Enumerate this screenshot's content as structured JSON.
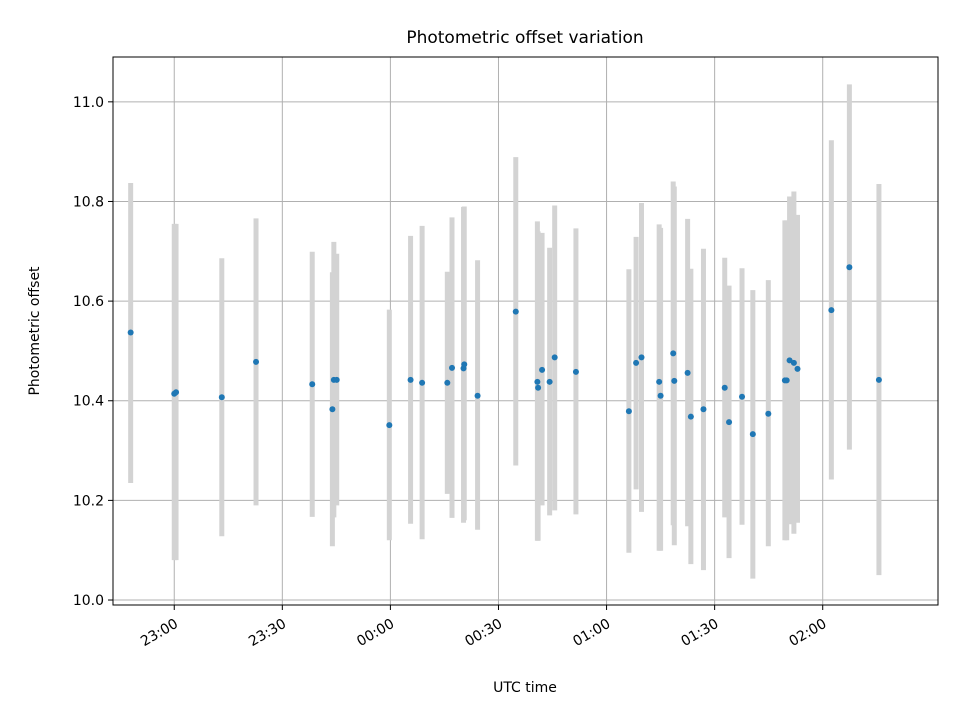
{
  "chart_data": {
    "type": "scatter",
    "title": "Photometric offset variation",
    "xlabel": "UTC time",
    "ylabel": "Photometric offset",
    "x_unit": "UTC time of day (minutes after midnight; negative = previous day)",
    "xlim": [
      -77,
      152
    ],
    "ylim": [
      9.99,
      11.09
    ],
    "grid": true,
    "x_ticks": [
      {
        "value": -60,
        "label": "23:00"
      },
      {
        "value": -30,
        "label": "23:30"
      },
      {
        "value": 0,
        "label": "00:00"
      },
      {
        "value": 30,
        "label": "00:30"
      },
      {
        "value": 60,
        "label": "01:00"
      },
      {
        "value": 90,
        "label": "01:30"
      },
      {
        "value": 120,
        "label": "02:00"
      }
    ],
    "y_ticks": [
      {
        "value": 10.0,
        "label": "10.0"
      },
      {
        "value": 10.2,
        "label": "10.2"
      },
      {
        "value": 10.4,
        "label": "10.4"
      },
      {
        "value": 10.6,
        "label": "10.6"
      },
      {
        "value": 10.8,
        "label": "10.8"
      },
      {
        "value": 11.0,
        "label": "11.0"
      }
    ],
    "colors": {
      "marker": "#1f77b4",
      "errorbar": "#d3d3d3",
      "grid": "#b0b0b0"
    },
    "points": [
      {
        "x": -72.1,
        "y": 10.537,
        "lo": 10.235,
        "hi": 10.837
      },
      {
        "x": -60.0,
        "y": 10.414,
        "lo": 10.08,
        "hi": 10.755
      },
      {
        "x": -59.5,
        "y": 10.417,
        "lo": 10.08,
        "hi": 10.755
      },
      {
        "x": -46.8,
        "y": 10.407,
        "lo": 10.128,
        "hi": 10.686
      },
      {
        "x": -37.3,
        "y": 10.478,
        "lo": 10.19,
        "hi": 10.766
      },
      {
        "x": -21.7,
        "y": 10.433,
        "lo": 10.167,
        "hi": 10.699
      },
      {
        "x": -16.1,
        "y": 10.383,
        "lo": 10.108,
        "hi": 10.658
      },
      {
        "x": -15.7,
        "y": 10.442,
        "lo": 10.166,
        "hi": 10.719
      },
      {
        "x": -14.9,
        "y": 10.442,
        "lo": 10.19,
        "hi": 10.695
      },
      {
        "x": -0.3,
        "y": 10.351,
        "lo": 10.12,
        "hi": 10.583
      },
      {
        "x": 5.6,
        "y": 10.442,
        "lo": 10.153,
        "hi": 10.731
      },
      {
        "x": 8.8,
        "y": 10.436,
        "lo": 10.122,
        "hi": 10.751
      },
      {
        "x": 15.8,
        "y": 10.436,
        "lo": 10.213,
        "hi": 10.659
      },
      {
        "x": 17.1,
        "y": 10.466,
        "lo": 10.165,
        "hi": 10.768
      },
      {
        "x": 20.3,
        "y": 10.465,
        "lo": 10.155,
        "hi": 10.789
      },
      {
        "x": 20.5,
        "y": 10.473,
        "lo": 10.16,
        "hi": 10.79
      },
      {
        "x": 24.2,
        "y": 10.41,
        "lo": 10.141,
        "hi": 10.682
      },
      {
        "x": 34.8,
        "y": 10.579,
        "lo": 10.27,
        "hi": 10.889
      },
      {
        "x": 40.8,
        "y": 10.438,
        "lo": 10.119,
        "hi": 10.76
      },
      {
        "x": 41.0,
        "y": 10.426,
        "lo": 10.119,
        "hi": 10.74
      },
      {
        "x": 42.1,
        "y": 10.462,
        "lo": 10.19,
        "hi": 10.737
      },
      {
        "x": 44.2,
        "y": 10.438,
        "lo": 10.17,
        "hi": 10.707
      },
      {
        "x": 45.6,
        "y": 10.487,
        "lo": 10.18,
        "hi": 10.792
      },
      {
        "x": 51.5,
        "y": 10.458,
        "lo": 10.172,
        "hi": 10.746
      },
      {
        "x": 66.2,
        "y": 10.379,
        "lo": 10.095,
        "hi": 10.664
      },
      {
        "x": 68.2,
        "y": 10.476,
        "lo": 10.222,
        "hi": 10.729
      },
      {
        "x": 69.7,
        "y": 10.487,
        "lo": 10.177,
        "hi": 10.797
      },
      {
        "x": 74.6,
        "y": 10.438,
        "lo": 10.099,
        "hi": 10.754
      },
      {
        "x": 75.0,
        "y": 10.41,
        "lo": 10.099,
        "hi": 10.747
      },
      {
        "x": 78.5,
        "y": 10.495,
        "lo": 10.15,
        "hi": 10.84
      },
      {
        "x": 78.8,
        "y": 10.44,
        "lo": 10.11,
        "hi": 10.83
      },
      {
        "x": 82.5,
        "y": 10.456,
        "lo": 10.148,
        "hi": 10.765
      },
      {
        "x": 83.4,
        "y": 10.368,
        "lo": 10.072,
        "hi": 10.665
      },
      {
        "x": 86.9,
        "y": 10.383,
        "lo": 10.06,
        "hi": 10.705
      },
      {
        "x": 92.8,
        "y": 10.426,
        "lo": 10.166,
        "hi": 10.687
      },
      {
        "x": 94.0,
        "y": 10.357,
        "lo": 10.084,
        "hi": 10.631
      },
      {
        "x": 97.6,
        "y": 10.408,
        "lo": 10.151,
        "hi": 10.666
      },
      {
        "x": 100.6,
        "y": 10.333,
        "lo": 10.043,
        "hi": 10.622
      },
      {
        "x": 104.9,
        "y": 10.374,
        "lo": 10.108,
        "hi": 10.642
      },
      {
        "x": 109.5,
        "y": 10.441,
        "lo": 10.12,
        "hi": 10.762
      },
      {
        "x": 110.0,
        "y": 10.441,
        "lo": 10.12,
        "hi": 10.762
      },
      {
        "x": 110.8,
        "y": 10.481,
        "lo": 10.152,
        "hi": 10.81
      },
      {
        "x": 112.0,
        "y": 10.476,
        "lo": 10.133,
        "hi": 10.82
      },
      {
        "x": 113.0,
        "y": 10.464,
        "lo": 10.155,
        "hi": 10.773
      },
      {
        "x": 122.4,
        "y": 10.582,
        "lo": 10.242,
        "hi": 10.923
      },
      {
        "x": 127.4,
        "y": 10.668,
        "lo": 10.302,
        "hi": 11.035
      },
      {
        "x": 135.6,
        "y": 10.442,
        "lo": 10.05,
        "hi": 10.835
      }
    ]
  }
}
